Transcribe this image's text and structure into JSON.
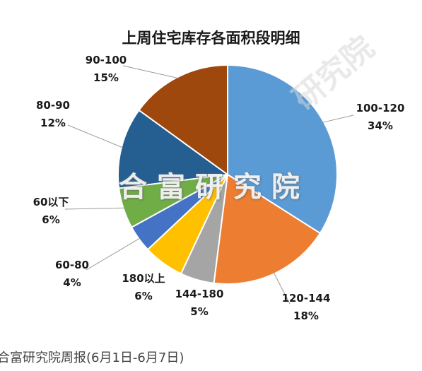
{
  "chart_data": {
    "type": "pie",
    "title": "上周住宅库存各面积段明细",
    "slices": [
      {
        "label": "100-120",
        "percent_label": "34%",
        "value": 34,
        "color": "#5B9BD5"
      },
      {
        "label": "120-144",
        "percent_label": "18%",
        "value": 18,
        "color": "#ED7D31"
      },
      {
        "label": "144-180",
        "percent_label": "5%",
        "value": 5,
        "color": "#A5A5A5"
      },
      {
        "label": "180以上",
        "percent_label": "6%",
        "value": 6,
        "color": "#FFC000"
      },
      {
        "label": "60-80",
        "percent_label": "4%",
        "value": 4,
        "color": "#4472C4"
      },
      {
        "label": "60以下",
        "percent_label": "6%",
        "value": 6,
        "color": "#70AD47"
      },
      {
        "label": "80-90",
        "percent_label": "12%",
        "value": 12,
        "color": "#255E91"
      },
      {
        "label": "90-100",
        "percent_label": "15%",
        "value": 15,
        "color": "#9E480E"
      }
    ]
  },
  "watermark_center": "合富研究院",
  "watermark_corner": "研究院",
  "caption": "合富研究院周报(6月1日-6月7日)"
}
